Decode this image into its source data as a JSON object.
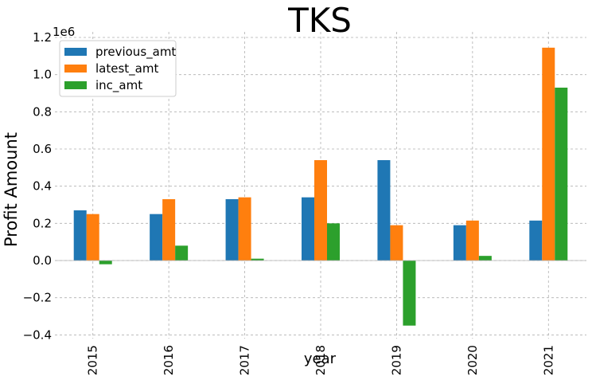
{
  "chart_data": {
    "type": "bar",
    "title": "TKS",
    "xlabel": "year",
    "ylabel": "Profit Amount",
    "y_offset_label": "1e6",
    "categories": [
      "2015",
      "2016",
      "2017",
      "2018",
      "2019",
      "2020",
      "2021"
    ],
    "series": [
      {
        "name": "previous_amt",
        "color": "#1f77b4",
        "values": [
          0.27,
          0.25,
          0.33,
          0.34,
          0.54,
          0.19,
          0.215
        ]
      },
      {
        "name": "latest_amt",
        "color": "#ff7f0e",
        "values": [
          0.25,
          0.33,
          0.34,
          0.54,
          0.19,
          0.215,
          1.145
        ]
      },
      {
        "name": "inc_amt",
        "color": "#2ca02c",
        "values": [
          -0.02,
          0.08,
          0.01,
          0.2,
          -0.35,
          0.025,
          0.93
        ]
      }
    ],
    "y_ticks": [
      -0.4,
      -0.2,
      0.0,
      0.2,
      0.4,
      0.6,
      0.8,
      1.0,
      1.2
    ],
    "y_tick_labels": [
      "−0.4",
      "−0.2",
      "0.0",
      "0.2",
      "0.4",
      "0.6",
      "0.8",
      "1.0",
      "1.2"
    ],
    "ylim": [
      -0.42,
      1.23
    ],
    "grid": true,
    "legend_position": "top-left"
  }
}
